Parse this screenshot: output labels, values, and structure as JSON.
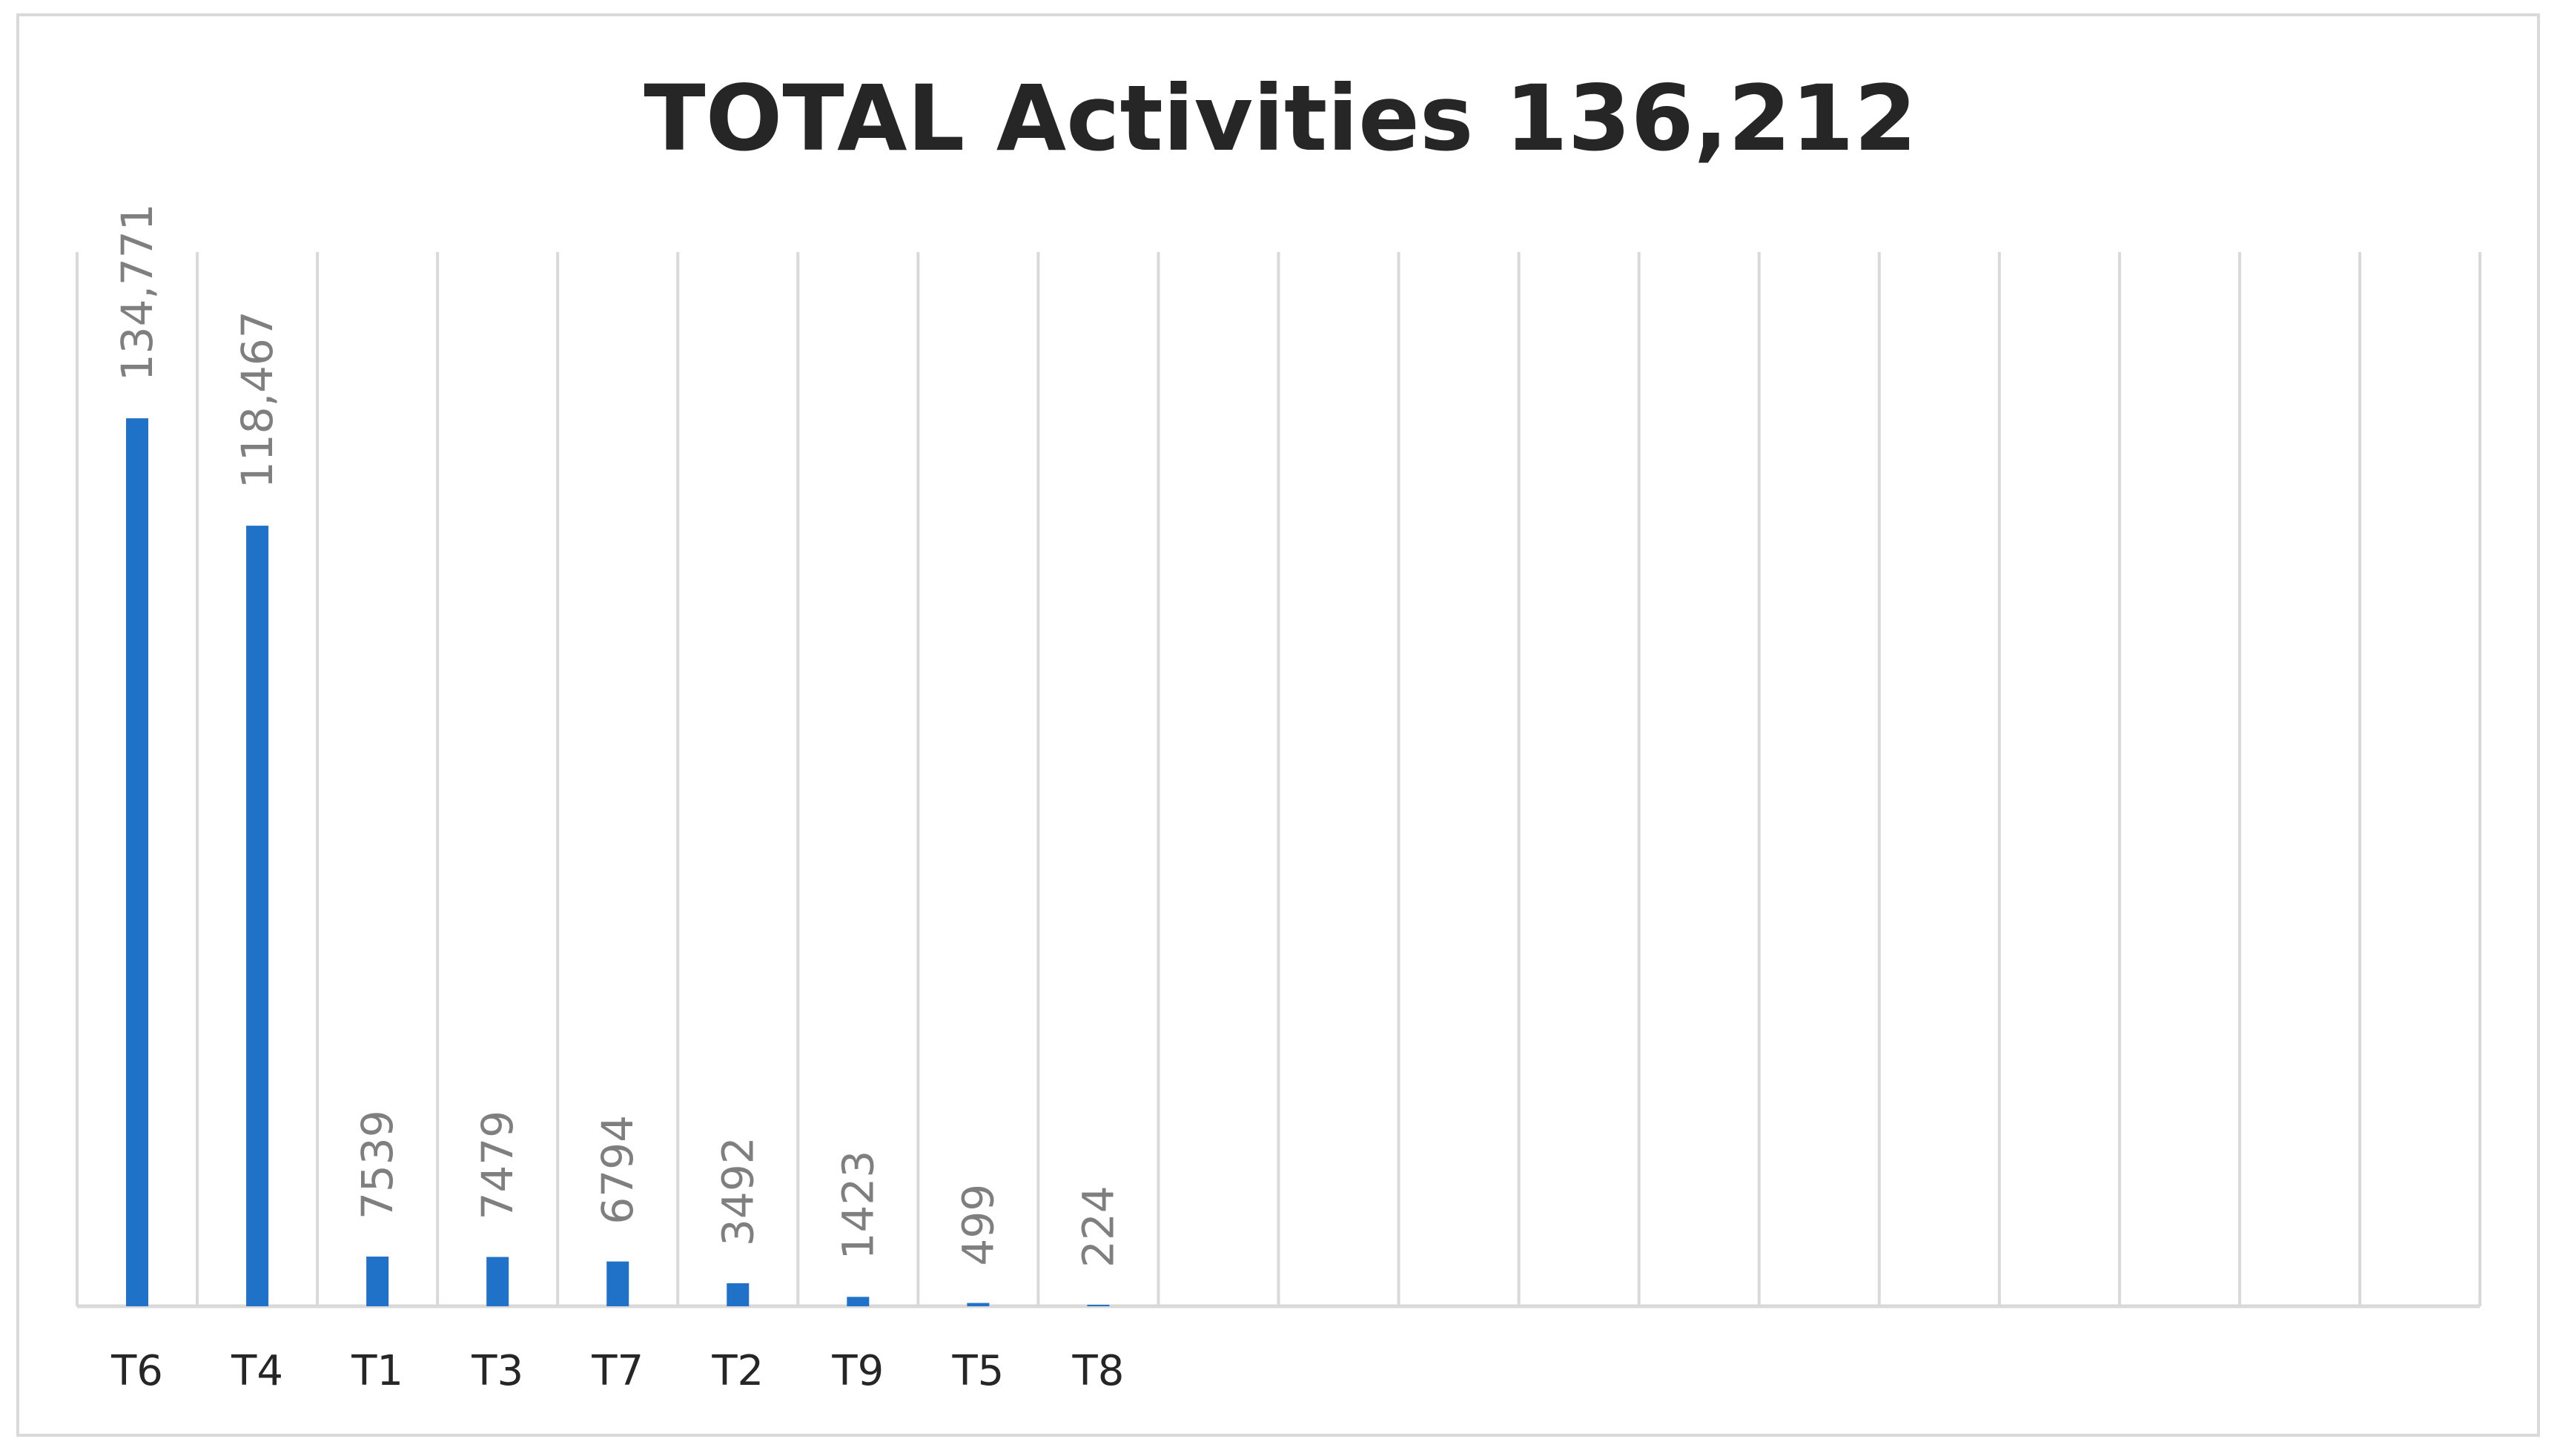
{
  "chart_data": {
    "type": "bar",
    "title": "TOTAL Activities 136,212",
    "xlabel": "",
    "ylabel": "",
    "categories": [
      "T6",
      "T4",
      "T1",
      "T3",
      "T7",
      "T2",
      "T9",
      "T5",
      "T8"
    ],
    "values": [
      134771,
      118467,
      7539,
      7479,
      6794,
      3492,
      1423,
      499,
      224
    ],
    "data_labels": [
      "134,771",
      "118,467",
      "7539",
      "7479",
      "6794",
      "3492",
      "1423",
      "499",
      "224"
    ],
    "slot_count": 20,
    "ylim": [
      0,
      160000
    ],
    "grid": "vertical",
    "legend": "none",
    "colors": {
      "bar": "#1F72C8",
      "gridline": "#d9d9d9",
      "title": "#262626",
      "data_label": "#7f7f7f",
      "tick_label": "#262626"
    }
  }
}
